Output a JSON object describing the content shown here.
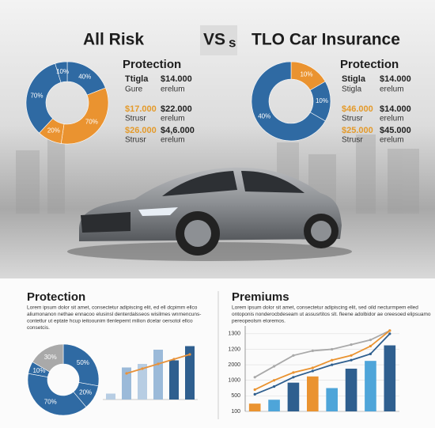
{
  "header": {
    "left_title": "All Risk",
    "vs": "VS",
    "vs_suffix": "s",
    "right_title": "TLO Car Insurance"
  },
  "left_panel": {
    "heading": "Protection",
    "rows": [
      [
        "Ttigla",
        "$14.000"
      ],
      [
        "Gure",
        "erelum"
      ],
      [
        "$17.000",
        "$22.000"
      ],
      [
        "Strusr",
        "erelum"
      ],
      [
        "$26.000",
        "$4,6.000"
      ],
      [
        "Strusr",
        "erelum"
      ]
    ]
  },
  "right_panel": {
    "heading": "Protection",
    "rows": [
      [
        "Stigla",
        "$14.000"
      ],
      [
        "Stigla",
        "erelum"
      ],
      [
        "$46.000",
        "$14.000"
      ],
      [
        "Strusr",
        "erelum"
      ],
      [
        "$25.000",
        "$45.000"
      ],
      [
        "Strusr",
        "erelum"
      ]
    ]
  },
  "bottom_left": {
    "heading": "Protection",
    "lines": [
      "Lorem ipsum dolor sit amet, consectetur adipiscing elit, ed ell dcpimm ellco",
      "aliumonanon nethae ennacoo elusinsl denterdalsseos wisilmes wnrnencuns-",
      "contetlur ut eptate hcup ieitoounim tlenlepemt milion dcelar oersotol ellco",
      "consetcis."
    ]
  },
  "bottom_right": {
    "heading": "Premiums",
    "lines": [
      "Lorem ipsum dolor sit amet, consectetur adipiscing elit, sed oild necturmpem elled",
      "ontoponis nonderocbdeseam ut assusrtitos slt. fleene adolbidor ae oreesoed elipsuamo",
      "pereopeolsm eloremos."
    ]
  },
  "chart_data": [
    {
      "type": "donut",
      "values": [
        40,
        70,
        20,
        70,
        10
      ],
      "value_labels": [
        "40%",
        "70%",
        "20%",
        "70%",
        "10%"
      ],
      "colors": [
        "#2f6aa3",
        "#ea9330",
        "#ea9330",
        "#2f6aa3",
        "#2f6aa3"
      ]
    },
    {
      "type": "donut",
      "values": [
        10,
        10,
        40
      ],
      "value_labels": [
        "10%",
        "10%",
        "40%"
      ],
      "colors": [
        "#ea9330",
        "#2f6aa3",
        "#2f6aa3"
      ]
    },
    {
      "type": "donut",
      "values": [
        50,
        20,
        70,
        10,
        30
      ],
      "value_labels": [
        "50%",
        "20%",
        "70%",
        "10%",
        "30%"
      ],
      "colors": [
        "#2f6aa3",
        "#2f6aa3",
        "#2f6aa3",
        "#2f6aa3",
        "#a9a9a9"
      ]
    },
    {
      "type": "bar",
      "ylim": [
        0,
        50
      ],
      "series": [
        {
          "type": "bar",
          "values": [
            5,
            27,
            30,
            42,
            33,
            45
          ],
          "colors": [
            "#b7cde3",
            "#9bbad9",
            "#b7cde3",
            "#9bbad9",
            "#2f5f8f",
            "#2f5f8f"
          ]
        },
        {
          "type": "line",
          "color": "#e8923a",
          "values": [
            null,
            22,
            26,
            30,
            34,
            38
          ]
        }
      ]
    },
    {
      "type": "bar",
      "ylim": [
        0,
        5.5
      ],
      "y_labels": [
        "100",
        "500",
        "1000",
        "2000",
        "1200",
        "1300"
      ],
      "grid": true,
      "series": [
        {
          "type": "bar",
          "values": [
            0.5,
            0.75,
            1.85,
            2.25,
            1.5,
            2.75,
            3.25,
            4.25
          ],
          "colors": [
            "#ea9330",
            "#4ea5d9",
            "#2f5f8f",
            "#ea9330",
            "#4ea5d9",
            "#2f5f8f",
            "#4ea5d9",
            "#2f5f8f"
          ]
        },
        {
          "type": "line",
          "color": "#a9a9a9",
          "values": [
            2.2,
            2.9,
            3.6,
            3.9,
            4.0,
            4.3,
            4.6,
            5.2
          ]
        },
        {
          "type": "line",
          "color": "#ea9330",
          "values": [
            1.4,
            2.0,
            2.5,
            2.8,
            3.3,
            3.6,
            4.2,
            5.2
          ]
        },
        {
          "type": "line",
          "color": "#2f5f8f",
          "values": [
            1.1,
            1.6,
            2.2,
            2.6,
            3.0,
            3.3,
            3.7,
            5.0
          ]
        }
      ]
    }
  ]
}
